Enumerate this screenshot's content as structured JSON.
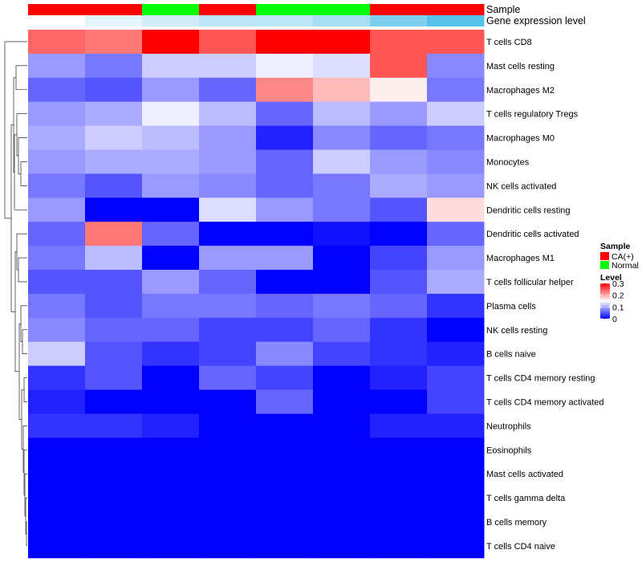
{
  "chart_data": {
    "type": "heatmap",
    "colors": {
      "low": "#0000FF",
      "mid": "#FFFFFF",
      "high": "#FF0000"
    },
    "scale": {
      "min": 0,
      "max": 0.3,
      "mid": 0.15
    },
    "column_annotations": [
      {
        "name": "Sample",
        "values": [
          "CA(+)",
          "CA(+)",
          "Normal",
          "CA(+)",
          "Normal",
          "Normal",
          "CA(+)",
          "CA(+)"
        ]
      },
      {
        "name": "Gene expression level",
        "values": [
          0.15,
          0.14,
          0.13,
          0.11,
          0.11,
          0.1,
          0.07,
          0.05
        ]
      }
    ],
    "gene_expression_colors": [
      "#FFFFFF",
      "#E6F4FB",
      "#D2EDF8",
      "#BDE5F5",
      "#BDE5F5",
      "#A8DEF2",
      "#7FD0EE",
      "#56C3EA"
    ],
    "rows": [
      "T cells CD8",
      "Mast cells resting",
      "Macrophages M2",
      "T cells regulatory  Tregs",
      "Macrophages M0",
      "Monocytes",
      "NK cells activated",
      "Dendritic cells resting",
      "Dendritic cells activated",
      "Macrophages M1",
      "T cells follicular helper",
      "Plasma cells",
      "NK cells resting",
      "B cells naive",
      "T cells CD4 memory resting",
      "T cells CD4 memory activated",
      "Neutrophils",
      "Eosinophils",
      "Mast cells activated",
      "T cells gamma delta",
      "B cells memory",
      "T cells CD4 naive"
    ],
    "values": [
      [
        0.24,
        0.23,
        0.3,
        0.25,
        0.3,
        0.3,
        0.25,
        0.25
      ],
      [
        0.09,
        0.07,
        0.12,
        0.12,
        0.14,
        0.13,
        0.25,
        0.08
      ],
      [
        0.06,
        0.05,
        0.09,
        0.06,
        0.22,
        0.19,
        0.16,
        0.07
      ],
      [
        0.09,
        0.1,
        0.14,
        0.11,
        0.06,
        0.11,
        0.09,
        0.12
      ],
      [
        0.1,
        0.12,
        0.11,
        0.09,
        0.02,
        0.08,
        0.06,
        0.07
      ],
      [
        0.09,
        0.1,
        0.1,
        0.09,
        0.06,
        0.12,
        0.09,
        0.08
      ],
      [
        0.07,
        0.05,
        0.09,
        0.08,
        0.06,
        0.07,
        0.1,
        0.09
      ],
      [
        0.09,
        0.0,
        0.0,
        0.13,
        0.09,
        0.07,
        0.05,
        0.17
      ],
      [
        0.06,
        0.23,
        0.06,
        0.0,
        0.0,
        0.01,
        0.0,
        0.06
      ],
      [
        0.07,
        0.11,
        0.0,
        0.09,
        0.09,
        0.0,
        0.04,
        0.09
      ],
      [
        0.05,
        0.05,
        0.09,
        0.06,
        0.0,
        0.0,
        0.05,
        0.1
      ],
      [
        0.07,
        0.05,
        0.07,
        0.07,
        0.06,
        0.07,
        0.06,
        0.03
      ],
      [
        0.08,
        0.06,
        0.06,
        0.04,
        0.04,
        0.06,
        0.03,
        0.0
      ],
      [
        0.12,
        0.05,
        0.03,
        0.04,
        0.08,
        0.04,
        0.03,
        0.02
      ],
      [
        0.03,
        0.05,
        0.0,
        0.06,
        0.04,
        0.0,
        0.02,
        0.04
      ],
      [
        0.02,
        0.0,
        0.0,
        0.0,
        0.06,
        0.0,
        0.0,
        0.04
      ],
      [
        0.03,
        0.03,
        0.02,
        0.0,
        0.0,
        0.0,
        0.02,
        0.02
      ],
      [
        0.0,
        0.0,
        0.0,
        0.0,
        0.0,
        0.0,
        0.0,
        0.0
      ],
      [
        0.0,
        0.0,
        0.0,
        0.0,
        0.0,
        0.0,
        0.0,
        0.0
      ],
      [
        0.0,
        0.0,
        0.0,
        0.0,
        0.0,
        0.0,
        0.0,
        0.0
      ],
      [
        0.0,
        0.0,
        0.0,
        0.0,
        0.0,
        0.0,
        0.0,
        0.0
      ],
      [
        0.0,
        0.0,
        0.0,
        0.0,
        0.0,
        0.0,
        0.0,
        0.0
      ]
    ],
    "legend": {
      "sample": {
        "title": "Sample",
        "items": [
          {
            "label": "CA(+)",
            "color": "#FF0000"
          },
          {
            "label": "Normal",
            "color": "#00FF00"
          }
        ]
      },
      "level": {
        "title": "Level",
        "ticks": [
          "0.3",
          "0.2",
          "0.1",
          "0"
        ],
        "tick_values": [
          0.3,
          0.2,
          0.1,
          0
        ]
      }
    },
    "dendrogram": "row clustering tree on left side"
  }
}
